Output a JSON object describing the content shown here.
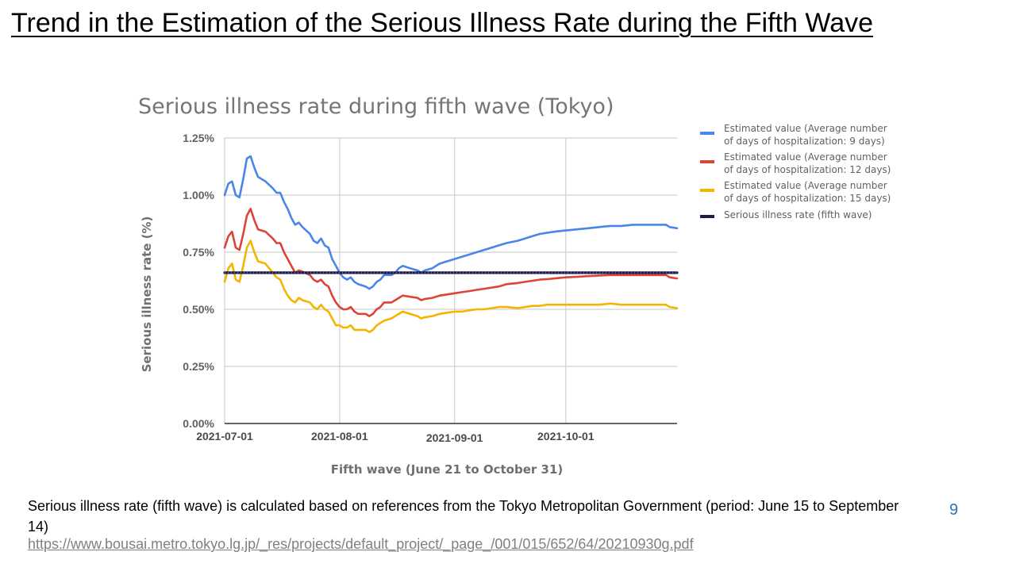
{
  "slide": {
    "title": "Trend in the Estimation of the Serious Illness Rate during the Fifth Wave",
    "caption": "Serious illness rate (fifth wave) is calculated based on references from the Tokyo Metropolitan Government (period: June 15 to September 14)",
    "source_url": "https://www.bousai.metro.tokyo.lg.jp/_res/projects/default_project/_page_/001/015/652/64/20210930g.pdf",
    "page_number": "9"
  },
  "chart_data": {
    "type": "line",
    "title": "Serious illness rate during fifth wave (Tokyo)",
    "xlabel": "Fifth wave (June 21 to October 31)",
    "ylabel": "Serious illness rate (%)",
    "x_range": [
      "2021-07-01",
      "2021-10-31"
    ],
    "x_ticks": [
      "2021-07-01",
      "2021-08-01",
      "2021-09-01",
      "2021-10-01"
    ],
    "y_ticks": [
      "0.00%",
      "0.25%",
      "0.50%",
      "0.75%",
      "1.00%",
      "1.25%"
    ],
    "ylim": [
      0,
      1.25
    ],
    "grid": true,
    "legend_position": "right",
    "series": [
      {
        "name": "Estimated value (Average number of days of hospitalization: 9 days)",
        "legend_lines": [
          "Estimated value (Average number",
          " of days of hospitalization: 9 days)"
        ],
        "color": "#4a86e8",
        "points": [
          [
            "2021-07-01",
            1.0
          ],
          [
            "2021-07-02",
            1.05
          ],
          [
            "2021-07-03",
            1.06
          ],
          [
            "2021-07-04",
            1.0
          ],
          [
            "2021-07-05",
            0.99
          ],
          [
            "2021-07-06",
            1.07
          ],
          [
            "2021-07-07",
            1.16
          ],
          [
            "2021-07-08",
            1.17
          ],
          [
            "2021-07-09",
            1.12
          ],
          [
            "2021-07-10",
            1.08
          ],
          [
            "2021-07-12",
            1.06
          ],
          [
            "2021-07-14",
            1.03
          ],
          [
            "2021-07-15",
            1.01
          ],
          [
            "2021-07-16",
            1.01
          ],
          [
            "2021-07-17",
            0.97
          ],
          [
            "2021-07-18",
            0.94
          ],
          [
            "2021-07-19",
            0.9
          ],
          [
            "2021-07-20",
            0.87
          ],
          [
            "2021-07-21",
            0.88
          ],
          [
            "2021-07-22",
            0.86
          ],
          [
            "2021-07-24",
            0.83
          ],
          [
            "2021-07-25",
            0.8
          ],
          [
            "2021-07-26",
            0.79
          ],
          [
            "2021-07-27",
            0.81
          ],
          [
            "2021-07-28",
            0.78
          ],
          [
            "2021-07-29",
            0.77
          ],
          [
            "2021-07-30",
            0.72
          ],
          [
            "2021-07-31",
            0.69
          ],
          [
            "2021-08-01",
            0.66
          ],
          [
            "2021-08-02",
            0.64
          ],
          [
            "2021-08-03",
            0.63
          ],
          [
            "2021-08-04",
            0.64
          ],
          [
            "2021-08-05",
            0.62
          ],
          [
            "2021-08-06",
            0.61
          ],
          [
            "2021-08-08",
            0.6
          ],
          [
            "2021-08-09",
            0.59
          ],
          [
            "2021-08-10",
            0.6
          ],
          [
            "2021-08-11",
            0.62
          ],
          [
            "2021-08-12",
            0.63
          ],
          [
            "2021-08-13",
            0.65
          ],
          [
            "2021-08-15",
            0.65
          ],
          [
            "2021-08-16",
            0.66
          ],
          [
            "2021-08-17",
            0.68
          ],
          [
            "2021-08-18",
            0.69
          ],
          [
            "2021-08-20",
            0.68
          ],
          [
            "2021-08-22",
            0.67
          ],
          [
            "2021-08-23",
            0.66
          ],
          [
            "2021-08-24",
            0.67
          ],
          [
            "2021-08-26",
            0.68
          ],
          [
            "2021-08-28",
            0.7
          ],
          [
            "2021-08-30",
            0.71
          ],
          [
            "2021-09-01",
            0.72
          ],
          [
            "2021-09-03",
            0.73
          ],
          [
            "2021-09-05",
            0.74
          ],
          [
            "2021-09-07",
            0.75
          ],
          [
            "2021-09-09",
            0.76
          ],
          [
            "2021-09-11",
            0.77
          ],
          [
            "2021-09-13",
            0.78
          ],
          [
            "2021-09-15",
            0.79
          ],
          [
            "2021-09-18",
            0.8
          ],
          [
            "2021-09-20",
            0.81
          ],
          [
            "2021-09-22",
            0.82
          ],
          [
            "2021-09-24",
            0.83
          ],
          [
            "2021-09-26",
            0.835
          ],
          [
            "2021-09-28",
            0.84
          ],
          [
            "2021-10-01",
            0.845
          ],
          [
            "2021-10-04",
            0.85
          ],
          [
            "2021-10-07",
            0.855
          ],
          [
            "2021-10-10",
            0.86
          ],
          [
            "2021-10-13",
            0.865
          ],
          [
            "2021-10-16",
            0.865
          ],
          [
            "2021-10-19",
            0.87
          ],
          [
            "2021-10-22",
            0.87
          ],
          [
            "2021-10-25",
            0.87
          ],
          [
            "2021-10-28",
            0.87
          ],
          [
            "2021-10-29",
            0.86
          ],
          [
            "2021-10-31",
            0.855
          ]
        ]
      },
      {
        "name": "Estimated value (Average number of days of hospitalization: 12 days)",
        "legend_lines": [
          "Estimated value (Average number",
          "of days of hospitalization: 12 days)"
        ],
        "color": "#db4437",
        "points": [
          [
            "2021-07-01",
            0.77
          ],
          [
            "2021-07-02",
            0.82
          ],
          [
            "2021-07-03",
            0.84
          ],
          [
            "2021-07-04",
            0.77
          ],
          [
            "2021-07-05",
            0.76
          ],
          [
            "2021-07-06",
            0.83
          ],
          [
            "2021-07-07",
            0.91
          ],
          [
            "2021-07-08",
            0.94
          ],
          [
            "2021-07-09",
            0.89
          ],
          [
            "2021-07-10",
            0.85
          ],
          [
            "2021-07-12",
            0.84
          ],
          [
            "2021-07-14",
            0.81
          ],
          [
            "2021-07-15",
            0.79
          ],
          [
            "2021-07-16",
            0.79
          ],
          [
            "2021-07-17",
            0.75
          ],
          [
            "2021-07-18",
            0.72
          ],
          [
            "2021-07-19",
            0.69
          ],
          [
            "2021-07-20",
            0.66
          ],
          [
            "2021-07-21",
            0.67
          ],
          [
            "2021-07-22",
            0.665
          ],
          [
            "2021-07-24",
            0.65
          ],
          [
            "2021-07-25",
            0.63
          ],
          [
            "2021-07-26",
            0.62
          ],
          [
            "2021-07-27",
            0.63
          ],
          [
            "2021-07-28",
            0.61
          ],
          [
            "2021-07-29",
            0.6
          ],
          [
            "2021-07-30",
            0.56
          ],
          [
            "2021-07-31",
            0.53
          ],
          [
            "2021-08-01",
            0.51
          ],
          [
            "2021-08-02",
            0.5
          ],
          [
            "2021-08-03",
            0.5
          ],
          [
            "2021-08-04",
            0.51
          ],
          [
            "2021-08-05",
            0.49
          ],
          [
            "2021-08-06",
            0.48
          ],
          [
            "2021-08-08",
            0.48
          ],
          [
            "2021-08-09",
            0.47
          ],
          [
            "2021-08-10",
            0.48
          ],
          [
            "2021-08-11",
            0.5
          ],
          [
            "2021-08-12",
            0.51
          ],
          [
            "2021-08-13",
            0.53
          ],
          [
            "2021-08-15",
            0.53
          ],
          [
            "2021-08-16",
            0.54
          ],
          [
            "2021-08-17",
            0.55
          ],
          [
            "2021-08-18",
            0.56
          ],
          [
            "2021-08-20",
            0.555
          ],
          [
            "2021-08-22",
            0.55
          ],
          [
            "2021-08-23",
            0.54
          ],
          [
            "2021-08-24",
            0.545
          ],
          [
            "2021-08-26",
            0.55
          ],
          [
            "2021-08-28",
            0.56
          ],
          [
            "2021-08-30",
            0.565
          ],
          [
            "2021-09-01",
            0.57
          ],
          [
            "2021-09-03",
            0.575
          ],
          [
            "2021-09-05",
            0.58
          ],
          [
            "2021-09-07",
            0.585
          ],
          [
            "2021-09-09",
            0.59
          ],
          [
            "2021-09-11",
            0.595
          ],
          [
            "2021-09-13",
            0.6
          ],
          [
            "2021-09-15",
            0.61
          ],
          [
            "2021-09-18",
            0.615
          ],
          [
            "2021-09-20",
            0.62
          ],
          [
            "2021-09-22",
            0.625
          ],
          [
            "2021-09-24",
            0.63
          ],
          [
            "2021-09-26",
            0.632
          ],
          [
            "2021-09-28",
            0.635
          ],
          [
            "2021-10-01",
            0.64
          ],
          [
            "2021-10-04",
            0.642
          ],
          [
            "2021-10-07",
            0.645
          ],
          [
            "2021-10-10",
            0.648
          ],
          [
            "2021-10-13",
            0.65
          ],
          [
            "2021-10-16",
            0.65
          ],
          [
            "2021-10-19",
            0.65
          ],
          [
            "2021-10-22",
            0.65
          ],
          [
            "2021-10-25",
            0.65
          ],
          [
            "2021-10-28",
            0.65
          ],
          [
            "2021-10-29",
            0.64
          ],
          [
            "2021-10-31",
            0.635
          ]
        ]
      },
      {
        "name": "Estimated value (Average number of days of hospitalization: 15 days)",
        "legend_lines": [
          "Estimated value (Average number",
          " of days of hospitalization: 15 days)"
        ],
        "color": "#f4b400",
        "points": [
          [
            "2021-07-01",
            0.62
          ],
          [
            "2021-07-02",
            0.68
          ],
          [
            "2021-07-03",
            0.7
          ],
          [
            "2021-07-04",
            0.63
          ],
          [
            "2021-07-05",
            0.62
          ],
          [
            "2021-07-06",
            0.69
          ],
          [
            "2021-07-07",
            0.77
          ],
          [
            "2021-07-08",
            0.8
          ],
          [
            "2021-07-09",
            0.75
          ],
          [
            "2021-07-10",
            0.71
          ],
          [
            "2021-07-12",
            0.7
          ],
          [
            "2021-07-14",
            0.66
          ],
          [
            "2021-07-15",
            0.64
          ],
          [
            "2021-07-16",
            0.63
          ],
          [
            "2021-07-17",
            0.59
          ],
          [
            "2021-07-18",
            0.56
          ],
          [
            "2021-07-19",
            0.54
          ],
          [
            "2021-07-20",
            0.53
          ],
          [
            "2021-07-21",
            0.55
          ],
          [
            "2021-07-22",
            0.54
          ],
          [
            "2021-07-24",
            0.53
          ],
          [
            "2021-07-25",
            0.51
          ],
          [
            "2021-07-26",
            0.5
          ],
          [
            "2021-07-27",
            0.52
          ],
          [
            "2021-07-28",
            0.5
          ],
          [
            "2021-07-29",
            0.49
          ],
          [
            "2021-07-30",
            0.46
          ],
          [
            "2021-07-31",
            0.43
          ],
          [
            "2021-08-01",
            0.43
          ],
          [
            "2021-08-02",
            0.42
          ],
          [
            "2021-08-03",
            0.42
          ],
          [
            "2021-08-04",
            0.43
          ],
          [
            "2021-08-05",
            0.41
          ],
          [
            "2021-08-06",
            0.41
          ],
          [
            "2021-08-08",
            0.41
          ],
          [
            "2021-08-09",
            0.4
          ],
          [
            "2021-08-10",
            0.41
          ],
          [
            "2021-08-11",
            0.43
          ],
          [
            "2021-08-12",
            0.44
          ],
          [
            "2021-08-13",
            0.45
          ],
          [
            "2021-08-15",
            0.46
          ],
          [
            "2021-08-16",
            0.47
          ],
          [
            "2021-08-17",
            0.48
          ],
          [
            "2021-08-18",
            0.49
          ],
          [
            "2021-08-20",
            0.48
          ],
          [
            "2021-08-22",
            0.47
          ],
          [
            "2021-08-23",
            0.46
          ],
          [
            "2021-08-24",
            0.465
          ],
          [
            "2021-08-26",
            0.47
          ],
          [
            "2021-08-28",
            0.48
          ],
          [
            "2021-08-30",
            0.485
          ],
          [
            "2021-09-01",
            0.49
          ],
          [
            "2021-09-03",
            0.49
          ],
          [
            "2021-09-05",
            0.495
          ],
          [
            "2021-09-07",
            0.5
          ],
          [
            "2021-09-09",
            0.5
          ],
          [
            "2021-09-11",
            0.505
          ],
          [
            "2021-09-13",
            0.51
          ],
          [
            "2021-09-15",
            0.51
          ],
          [
            "2021-09-18",
            0.505
          ],
          [
            "2021-09-20",
            0.51
          ],
          [
            "2021-09-22",
            0.515
          ],
          [
            "2021-09-24",
            0.515
          ],
          [
            "2021-09-26",
            0.52
          ],
          [
            "2021-09-28",
            0.52
          ],
          [
            "2021-10-01",
            0.52
          ],
          [
            "2021-10-04",
            0.52
          ],
          [
            "2021-10-07",
            0.52
          ],
          [
            "2021-10-10",
            0.52
          ],
          [
            "2021-10-13",
            0.525
          ],
          [
            "2021-10-16",
            0.52
          ],
          [
            "2021-10-19",
            0.52
          ],
          [
            "2021-10-22",
            0.52
          ],
          [
            "2021-10-25",
            0.52
          ],
          [
            "2021-10-28",
            0.52
          ],
          [
            "2021-10-29",
            0.51
          ],
          [
            "2021-10-31",
            0.505
          ]
        ]
      },
      {
        "name": "Serious illness rate (fifth wave)",
        "legend_lines": [
          "Serious illness rate (fifth wave)"
        ],
        "color": "#1c1b4a",
        "points": [
          [
            "2021-07-01",
            0.66
          ],
          [
            "2021-10-31",
            0.66
          ]
        ]
      }
    ]
  }
}
